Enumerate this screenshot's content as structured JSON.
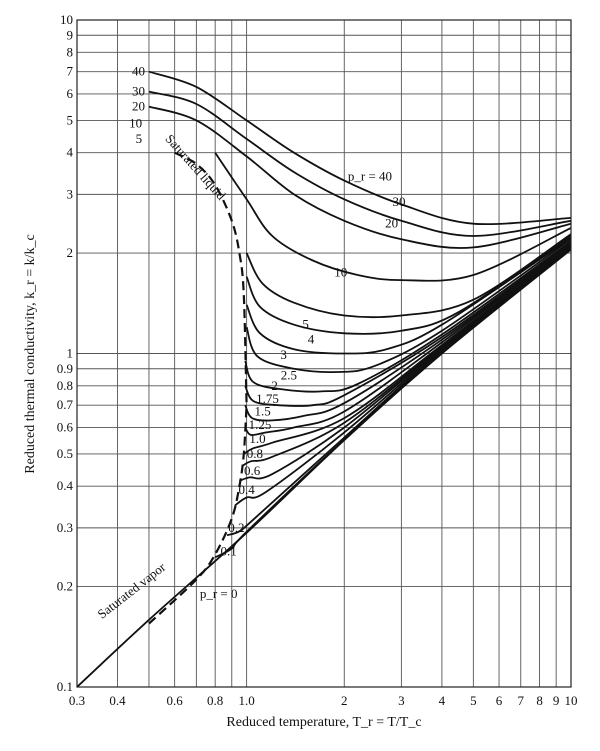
{
  "chart_data": {
    "type": "line",
    "title": "",
    "xlabel": "Reduced temperature, T_r = T/T_c",
    "ylabel": "Reduced thermal conductivity, k_r = k/k_c",
    "xscale": "log",
    "yscale": "log",
    "xlim": [
      0.3,
      10
    ],
    "ylim": [
      0.1,
      10
    ],
    "grid": true,
    "x_ticks": [
      {
        "value": 0.3,
        "label": "0.3"
      },
      {
        "value": 0.4,
        "label": "0.4"
      },
      {
        "value": 0.6,
        "label": "0.6"
      },
      {
        "value": 0.8,
        "label": "0.8"
      },
      {
        "value": 1.0,
        "label": "1.0"
      },
      {
        "value": 2,
        "label": "2"
      },
      {
        "value": 3,
        "label": "3"
      },
      {
        "value": 4,
        "label": "4"
      },
      {
        "value": 5,
        "label": "5"
      },
      {
        "value": 6,
        "label": "6"
      },
      {
        "value": 7,
        "label": "7"
      },
      {
        "value": 8,
        "label": "8"
      },
      {
        "value": 9,
        "label": "9"
      },
      {
        "value": 10,
        "label": "10"
      }
    ],
    "y_ticks": [
      {
        "value": 0.1,
        "label": "0.1"
      },
      {
        "value": 0.2,
        "label": "0.2"
      },
      {
        "value": 0.3,
        "label": "0.3"
      },
      {
        "value": 0.4,
        "label": "0.4"
      },
      {
        "value": 0.5,
        "label": "0.5"
      },
      {
        "value": 0.6,
        "label": "0.6"
      },
      {
        "value": 0.7,
        "label": "0.7"
      },
      {
        "value": 0.8,
        "label": "0.8"
      },
      {
        "value": 0.9,
        "label": "0.9"
      },
      {
        "value": 1,
        "label": "1"
      },
      {
        "value": 2,
        "label": "2"
      },
      {
        "value": 3,
        "label": "3"
      },
      {
        "value": 4,
        "label": "4"
      },
      {
        "value": 5,
        "label": "5"
      },
      {
        "value": 6,
        "label": "6"
      },
      {
        "value": 7,
        "label": "7"
      },
      {
        "value": 8,
        "label": "8"
      },
      {
        "value": 9,
        "label": "9"
      },
      {
        "value": 10,
        "label": "10"
      }
    ],
    "x_gridlines": [
      0.3,
      0.4,
      0.5,
      0.6,
      0.7,
      0.8,
      0.9,
      1.0,
      2,
      3,
      4,
      5,
      6,
      7,
      8,
      9,
      10
    ],
    "y_gridlines": [
      0.1,
      0.2,
      0.3,
      0.4,
      0.5,
      0.6,
      0.7,
      0.8,
      0.9,
      1,
      2,
      3,
      4,
      5,
      6,
      7,
      8,
      9,
      10
    ],
    "series": [
      {
        "name": "0",
        "label": "p_r = 0",
        "label_at": [
          0.82,
          0.19
        ],
        "x": [
          0.3,
          0.5,
          1.0,
          2.0,
          4.0,
          10.0
        ],
        "y": [
          0.1,
          0.159,
          0.29,
          0.55,
          1.0,
          2.05
        ]
      },
      {
        "name": "0.1",
        "label": "0.1",
        "label_at": [
          0.88,
          0.255
        ],
        "x": [
          0.8,
          0.9,
          1.0,
          2.0,
          4.0,
          10.0
        ],
        "y": [
          0.245,
          0.26,
          0.292,
          0.552,
          1.01,
          2.06
        ]
      },
      {
        "name": "0.2",
        "label": "0.2",
        "label_at": [
          0.93,
          0.3
        ],
        "x": [
          0.87,
          0.95,
          1.05,
          2.0,
          4.0,
          10.0
        ],
        "y": [
          0.285,
          0.293,
          0.318,
          0.56,
          1.02,
          2.07
        ]
      },
      {
        "name": "0.4",
        "label": "0.4",
        "label_at": [
          1.0,
          0.39
        ],
        "x": [
          0.92,
          1.0,
          1.15,
          2.0,
          4.0,
          10.0
        ],
        "y": [
          0.35,
          0.37,
          0.385,
          0.58,
          1.03,
          2.08
        ]
      },
      {
        "name": "0.6",
        "label": "0.6",
        "label_at": [
          1.04,
          0.445
        ],
        "x": [
          0.95,
          1.02,
          1.2,
          2.0,
          4.0,
          10.0
        ],
        "y": [
          0.415,
          0.425,
          0.435,
          0.6,
          1.04,
          2.09
        ]
      },
      {
        "name": "0.8",
        "label": "0.8",
        "label_at": [
          1.06,
          0.5
        ],
        "x": [
          0.97,
          1.03,
          1.2,
          2.0,
          4.0,
          10.0
        ],
        "y": [
          0.46,
          0.475,
          0.49,
          0.62,
          1.05,
          2.1
        ]
      },
      {
        "name": "1.0",
        "label": "1.0",
        "label_at": [
          1.08,
          0.555
        ],
        "x": [
          0.98,
          1.05,
          1.2,
          2.0,
          4.0,
          10.0
        ],
        "y": [
          0.5,
          0.52,
          0.54,
          0.64,
          1.06,
          2.1
        ]
      },
      {
        "name": "1.25",
        "label": "1.25",
        "label_at": [
          1.1,
          0.61
        ],
        "x": [
          0.99,
          1.03,
          1.15,
          1.4,
          2.0,
          4.0,
          10.0
        ],
        "y": [
          0.6,
          0.57,
          0.58,
          0.6,
          0.67,
          1.08,
          2.12
        ]
      },
      {
        "name": "1.5",
        "label": "1.5",
        "label_at": [
          1.12,
          0.67
        ],
        "x": [
          0.99,
          1.04,
          1.2,
          1.5,
          2.0,
          4.0,
          10.0
        ],
        "y": [
          0.7,
          0.64,
          0.63,
          0.65,
          0.71,
          1.1,
          2.13
        ]
      },
      {
        "name": "1.75",
        "label": "1.75",
        "label_at": [
          1.16,
          0.73
        ],
        "x": [
          0.99,
          1.05,
          1.25,
          1.6,
          2.0,
          4.0,
          10.0
        ],
        "y": [
          0.8,
          0.72,
          0.7,
          0.7,
          0.75,
          1.12,
          2.15
        ]
      },
      {
        "name": "2",
        "label": "2",
        "label_at": [
          1.22,
          0.8
        ],
        "x": [
          0.99,
          1.05,
          1.3,
          1.7,
          2.2,
          4.0,
          10.0
        ],
        "y": [
          0.95,
          0.82,
          0.78,
          0.77,
          0.81,
          1.14,
          2.17
        ]
      },
      {
        "name": "2.5",
        "label": "2.5",
        "label_at": [
          1.35,
          0.86
        ],
        "x": [
          1.0,
          1.08,
          1.4,
          1.9,
          2.5,
          4.0,
          10.0
        ],
        "y": [
          1.2,
          0.98,
          0.9,
          0.88,
          0.92,
          1.17,
          2.2
        ]
      },
      {
        "name": "3",
        "label": "3",
        "label_at": [
          1.3,
          0.99
        ],
        "x": [
          1.0,
          1.1,
          1.4,
          2.0,
          2.7,
          4.0,
          10.0
        ],
        "y": [
          1.4,
          1.15,
          1.03,
          1.0,
          1.03,
          1.22,
          2.22
        ]
      },
      {
        "name": "4",
        "label": "4",
        "label_at": [
          1.58,
          1.1
        ],
        "x": [
          1.0,
          1.1,
          1.4,
          2.0,
          3.0,
          4.5,
          10.0
        ],
        "y": [
          1.7,
          1.38,
          1.22,
          1.15,
          1.17,
          1.33,
          2.25
        ]
      },
      {
        "name": "5",
        "label": "5",
        "label_at": [
          1.52,
          1.22
        ],
        "x": [
          1.0,
          1.12,
          1.4,
          2.0,
          3.0,
          5.0,
          10.0
        ],
        "y": [
          2.0,
          1.62,
          1.42,
          1.3,
          1.3,
          1.45,
          2.28
        ]
      },
      {
        "name": "10",
        "label": "10",
        "label_at": [
          1.95,
          1.75
        ],
        "x": [
          0.8,
          1.0,
          1.2,
          1.6,
          2.2,
          3.0,
          5.0,
          10.0
        ],
        "y": [
          4.0,
          2.9,
          2.25,
          1.9,
          1.72,
          1.66,
          1.72,
          2.38
        ]
      },
      {
        "name": "20",
        "label": "20",
        "label_at": [
          2.8,
          2.45
        ],
        "x": [
          0.5,
          0.7,
          1.0,
          1.4,
          2.0,
          3.0,
          5.0,
          10.0
        ],
        "y": [
          5.5,
          5.0,
          3.9,
          3.0,
          2.5,
          2.2,
          2.08,
          2.45
        ]
      },
      {
        "name": "30",
        "label": "30",
        "label_at": [
          2.95,
          2.85
        ],
        "x": [
          0.5,
          0.7,
          1.0,
          1.4,
          2.0,
          3.0,
          5.0,
          10.0
        ],
        "y": [
          6.1,
          5.6,
          4.4,
          3.5,
          2.9,
          2.5,
          2.25,
          2.5
        ]
      },
      {
        "name": "40",
        "label": "p_r = 40",
        "label_at": [
          2.4,
          3.4
        ],
        "x": [
          0.5,
          0.7,
          1.0,
          1.4,
          2.0,
          3.0,
          5.0,
          10.0
        ],
        "y": [
          7.0,
          6.3,
          5.0,
          4.0,
          3.3,
          2.8,
          2.45,
          2.55
        ]
      }
    ],
    "left_branch_labels": [
      {
        "label": "40",
        "x": 0.5,
        "y": 7.0
      },
      {
        "label": "30",
        "x": 0.5,
        "y": 6.1
      },
      {
        "label": "20",
        "x": 0.5,
        "y": 5.5
      },
      {
        "label": "10",
        "x": 0.49,
        "y": 4.9
      },
      {
        "label": "5",
        "x": 0.49,
        "y": 4.4
      }
    ],
    "saturated_liquid": {
      "label": "Saturated liquid",
      "x": [
        0.6,
        0.7,
        0.8,
        0.9,
        0.95,
        0.98,
        1.0
      ],
      "y": [
        4.0,
        3.7,
        3.2,
        2.5,
        2.0,
        1.5,
        0.7
      ]
    },
    "saturated_vapor": {
      "label": "Saturated vapor",
      "x": [
        0.5,
        0.7,
        0.8,
        0.9,
        0.95,
        0.98,
        1.0
      ],
      "y": [
        0.155,
        0.21,
        0.25,
        0.32,
        0.4,
        0.5,
        0.7
      ]
    }
  }
}
